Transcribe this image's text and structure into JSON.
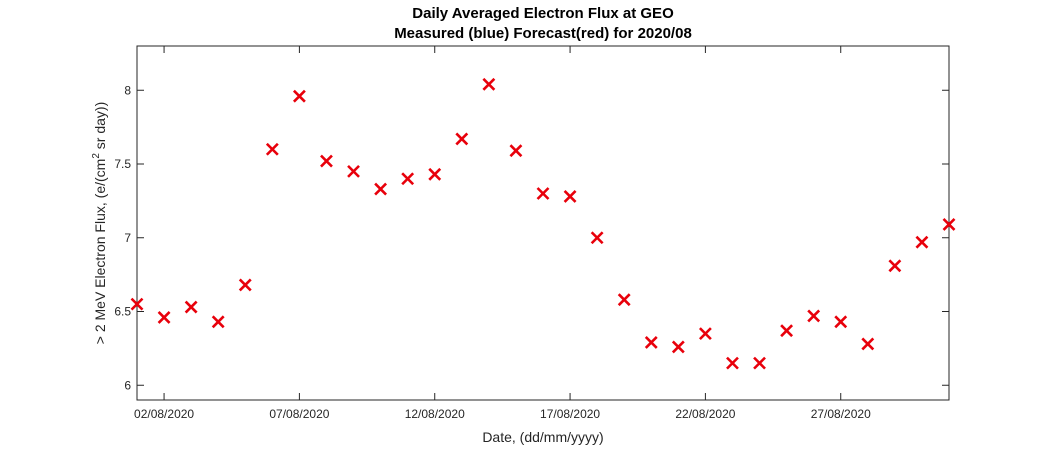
{
  "chart_data": {
    "type": "scatter",
    "title": [
      "Daily Averaged Electron Flux at GEO",
      "Measured (blue) Forecast(red) for 2020/08"
    ],
    "xlabel": "Date, (dd/mm/yyyy)",
    "ylabel": {
      "before_sup": "> 2 MeV Electron Flux, (e/(cm",
      "sup": "2",
      "after_sup": " sr day))"
    },
    "xlim": [
      "2020-08-01",
      "2020-08-31"
    ],
    "ylim": [
      5.9,
      8.3
    ],
    "x_ticks": [
      "02/08/2020",
      "07/08/2020",
      "12/08/2020",
      "17/08/2020",
      "22/08/2020",
      "27/08/2020"
    ],
    "x_tick_dates": [
      "2020-08-02",
      "2020-08-07",
      "2020-08-12",
      "2020-08-17",
      "2020-08-22",
      "2020-08-27"
    ],
    "y_ticks": [
      "6",
      "6.5",
      "7",
      "7.5",
      "8"
    ],
    "y_tick_values": [
      6,
      6.5,
      7,
      7.5,
      8
    ],
    "grid": false,
    "marker": "x",
    "series": [
      {
        "color": "#e8000b",
        "x": [
          "2020-08-01",
          "2020-08-02",
          "2020-08-03",
          "2020-08-04",
          "2020-08-05",
          "2020-08-06",
          "2020-08-07",
          "2020-08-08",
          "2020-08-09",
          "2020-08-10",
          "2020-08-11",
          "2020-08-12",
          "2020-08-13",
          "2020-08-14",
          "2020-08-15",
          "2020-08-16",
          "2020-08-17",
          "2020-08-18",
          "2020-08-19",
          "2020-08-20",
          "2020-08-21",
          "2020-08-22",
          "2020-08-23",
          "2020-08-24",
          "2020-08-25",
          "2020-08-26",
          "2020-08-27",
          "2020-08-28",
          "2020-08-29",
          "2020-08-30",
          "2020-08-31"
        ],
        "y": [
          6.55,
          6.46,
          6.53,
          6.43,
          6.68,
          7.6,
          7.96,
          7.52,
          7.45,
          7.33,
          7.4,
          7.43,
          7.67,
          8.04,
          7.59,
          7.3,
          7.28,
          7.0,
          6.58,
          6.29,
          6.26,
          6.35,
          6.15,
          6.15,
          6.37,
          6.47,
          6.43,
          6.28,
          6.81,
          6.97,
          7.09
        ]
      }
    ]
  }
}
